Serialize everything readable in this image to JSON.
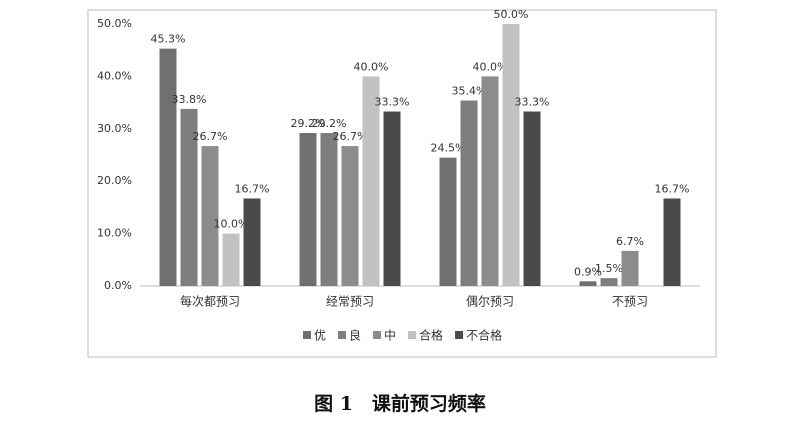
{
  "chart_data": {
    "type": "bar",
    "title": "图 1　课前预习频率",
    "categories": [
      "每次都预习",
      "经常预习",
      "偶尔预习",
      "不预习"
    ],
    "series": [
      {
        "name": "优",
        "color": "#707070",
        "values": [
          45.3,
          29.2,
          24.5,
          0.9
        ],
        "value_labels": [
          "45.3%",
          "29.2%",
          "24.5%",
          "0.9%"
        ]
      },
      {
        "name": "良",
        "color": "#7e7e7e",
        "values": [
          33.8,
          29.2,
          35.4,
          1.5
        ],
        "value_labels": [
          "33.8%",
          "29.2%",
          "35.4%",
          "1.5%"
        ]
      },
      {
        "name": "中",
        "color": "#8c8c8c",
        "values": [
          26.7,
          26.7,
          40.0,
          6.7
        ],
        "value_labels": [
          "26.7%",
          "26.7%",
          "40.0%",
          "6.7%"
        ]
      },
      {
        "name": "合格",
        "color": "#c2c2c2",
        "values": [
          10.0,
          40.0,
          50.0,
          null
        ],
        "value_labels": [
          "10.0%",
          "40.0%",
          "50.0%",
          null
        ]
      },
      {
        "name": "不合格",
        "color": "#4a4a4a",
        "values": [
          16.7,
          33.3,
          33.3,
          16.7
        ],
        "value_labels": [
          "16.7%",
          "33.3%",
          "33.3%",
          "16.7%"
        ]
      }
    ],
    "ylim": [
      0,
      50
    ],
    "yticks": [
      {
        "value": 0,
        "label": "0.0%"
      },
      {
        "value": 10,
        "label": "10.0%"
      },
      {
        "value": 20,
        "label": "20.0%"
      },
      {
        "value": 30,
        "label": "30.0%"
      },
      {
        "value": 40,
        "label": "40.0%"
      },
      {
        "value": 50,
        "label": "50.0%"
      }
    ],
    "grid": false,
    "legend": "bottom"
  }
}
